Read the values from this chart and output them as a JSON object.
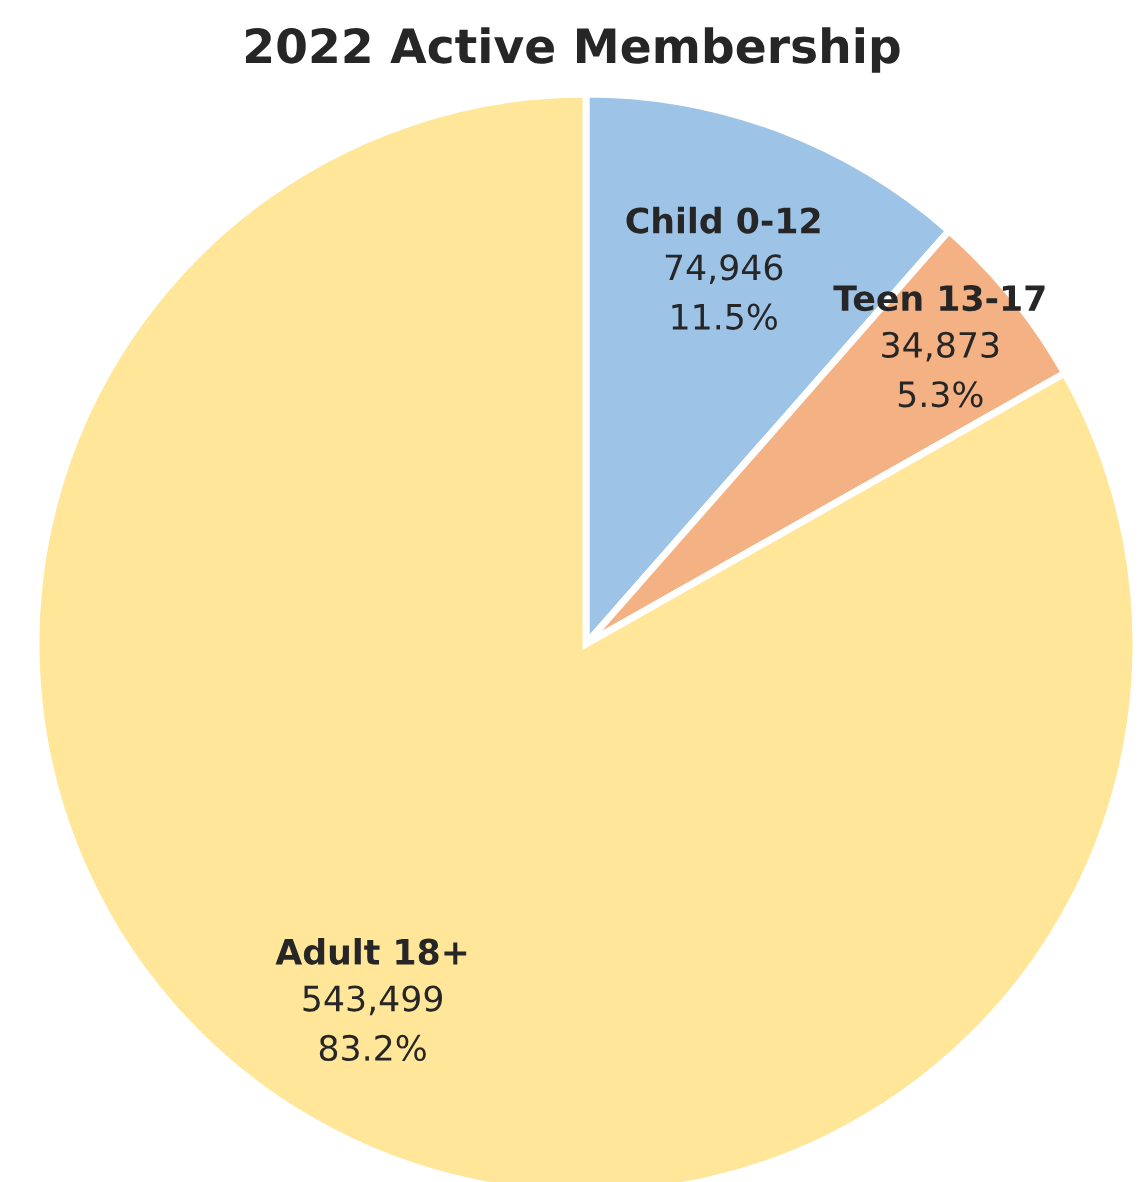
{
  "chart_data": {
    "type": "pie",
    "title": "2022 Active Membership",
    "categories": [
      "Child 0-12",
      "Teen 13-17",
      "Adult 18+"
    ],
    "values": [
      74946,
      34873,
      543499
    ],
    "value_labels": [
      "74,946\n11.5%",
      "34,873\n5.3%",
      "543,499\n83.2%"
    ],
    "colors": [
      "#9dc3e6",
      "#f4b183",
      "#ffe699"
    ],
    "legend": false
  }
}
